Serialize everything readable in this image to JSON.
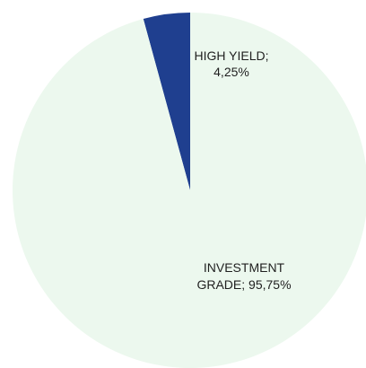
{
  "chart_data": {
    "type": "pie",
    "slices": [
      {
        "label_line1": "HIGH YIELD;",
        "label_line2": "4,25%",
        "value": 4.25,
        "color": "#1f3f8f"
      },
      {
        "label_line1": "INVESTMENT",
        "label_line2": "GRADE; 95,75%",
        "value": 95.75,
        "color": "#ecf8ee"
      }
    ]
  }
}
